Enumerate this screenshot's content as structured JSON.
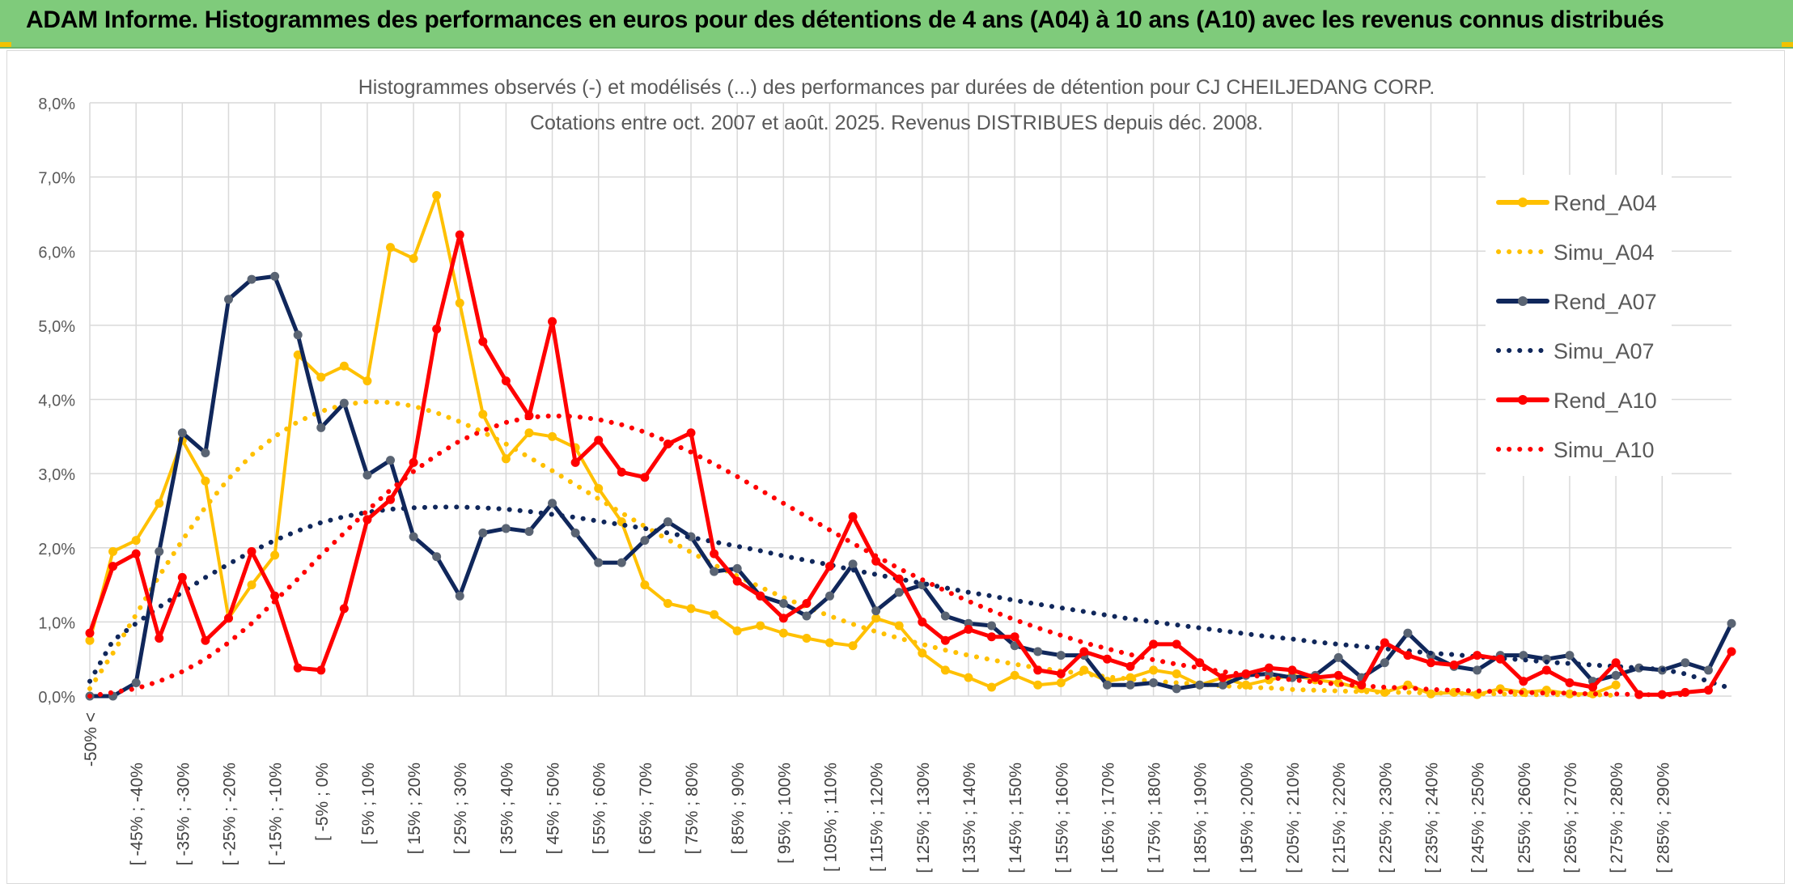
{
  "banner": {
    "title": "ADAM Informe. Histogrammes des performances en euros pour des détentions de 4 ans (A04) à 10 ans (A10) avec les revenus connus distribués"
  },
  "colors": {
    "banner_bg": "#7fcb7b",
    "A04": "#ffc000",
    "A07": "#10275b",
    "A10": "#ff0000",
    "marker_A07": "#5a6473",
    "grid": "#d9d9d9"
  },
  "chart_data": {
    "type": "line",
    "title": "Histogrammes observés (-) et modélisés (...) des performances par durées de détention pour CJ CHEILJEDANG CORP.",
    "subtitle": "Cotations entre oct. 2007 et août. 2025. Revenus DISTRIBUES depuis déc. 2008.",
    "xlabel": "",
    "ylabel": "",
    "ylim": [
      0,
      8
    ],
    "y_ticks": [
      "0,0%",
      "1,0%",
      "2,0%",
      "3,0%",
      "4,0%",
      "5,0%",
      "6,0%",
      "7,0%",
      "8,0%"
    ],
    "grid": true,
    "legend_position": "right",
    "x_labels": [
      "-50% <",
      "[ -45% ; -40%",
      "[ -35% ; -30%",
      "[ -25% ; -20%",
      "[ -15% ; -10%",
      "[ -5% ; 0%",
      "[ 5% ; 10%",
      "[ 15% ; 20%",
      "[ 25% ; 30%",
      "[ 35% ; 40%",
      "[ 45% ; 50%",
      "[ 55% ; 60%",
      "[ 65% ; 70%",
      "[ 75% ; 80%",
      "[ 85% ; 90%",
      "[ 95% ; 100%",
      "[ 105% ; 110%",
      "[ 115% ; 120%",
      "[ 125% ; 130%",
      "[ 135% ; 140%",
      "[ 145% ; 150%",
      "[ 155% ; 160%",
      "[ 165% ; 170%",
      "[ 175% ; 180%",
      "[ 185% ; 190%",
      "[ 195% ; 200%",
      "[ 205% ; 210%",
      "[ 215% ; 220%",
      "[ 225% ; 230%",
      "[ 235% ; 240%",
      "[ 245% ; 250%",
      "[ 255% ; 260%",
      "[ 265% ; 270%",
      "[ 275% ; 280%",
      "[ 285% ; 290%"
    ],
    "x_label_step": 2,
    "series": [
      {
        "name": "Rend_A04",
        "color": "#ffc000",
        "style": "solid",
        "markers": true,
        "values": [
          0.75,
          1.95,
          2.1,
          2.6,
          3.45,
          2.9,
          1.05,
          1.5,
          1.9,
          4.6,
          4.3,
          4.45,
          4.25,
          6.05,
          5.9,
          6.75,
          5.3,
          3.8,
          3.2,
          3.55,
          3.5,
          3.35,
          2.8,
          2.35,
          1.5,
          1.25,
          1.18,
          1.1,
          0.88,
          0.95,
          0.85,
          0.78,
          0.72,
          0.68,
          1.05,
          0.95,
          0.58,
          0.35,
          0.25,
          0.12,
          0.28,
          0.15,
          0.18,
          0.35,
          0.2,
          0.25,
          0.35,
          0.3,
          0.15,
          0.25,
          0.15,
          0.22,
          0.28,
          0.22,
          0.18,
          0.1,
          0.05,
          0.15,
          0.03,
          0.05,
          0.02,
          0.1,
          0.05,
          0.08,
          0.03,
          0.03,
          0.15
        ]
      },
      {
        "name": "Simu_A04",
        "color": "#ffc000",
        "style": "dotted",
        "markers": false,
        "values": [
          0.1,
          0.58,
          1.1,
          1.62,
          2.1,
          2.55,
          2.93,
          3.25,
          3.5,
          3.7,
          3.84,
          3.93,
          3.97,
          3.96,
          3.91,
          3.82,
          3.7,
          3.56,
          3.4,
          3.22,
          3.04,
          2.85,
          2.66,
          2.47,
          2.29,
          2.11,
          1.94,
          1.77,
          1.62,
          1.47,
          1.33,
          1.2,
          1.08,
          0.97,
          0.87,
          0.78,
          0.7,
          0.62,
          0.55,
          0.49,
          0.43,
          0.38,
          0.34,
          0.3,
          0.26,
          0.23,
          0.2,
          0.18,
          0.16,
          0.14,
          0.12,
          0.11,
          0.09,
          0.08,
          0.07,
          0.06,
          0.05,
          0.05,
          0.04,
          0.04,
          0.03,
          0.03,
          0.02,
          0.02,
          0.02,
          0.02,
          0.01
        ]
      },
      {
        "name": "Rend_A07",
        "color": "#10275b",
        "style": "solid",
        "markers": true,
        "values": [
          0.0,
          0.0,
          0.18,
          1.95,
          3.55,
          3.28,
          5.35,
          5.62,
          5.66,
          4.87,
          3.62,
          3.95,
          2.98,
          3.18,
          2.15,
          1.88,
          1.35,
          2.2,
          2.26,
          2.22,
          2.6,
          2.2,
          1.8,
          1.8,
          2.1,
          2.35,
          2.15,
          1.68,
          1.72,
          1.35,
          1.25,
          1.08,
          1.35,
          1.78,
          1.15,
          1.4,
          1.5,
          1.08,
          0.98,
          0.95,
          0.68,
          0.6,
          0.55,
          0.55,
          0.15,
          0.15,
          0.18,
          0.1,
          0.15,
          0.15,
          0.28,
          0.3,
          0.25,
          0.28,
          0.52,
          0.25,
          0.45,
          0.85,
          0.55,
          0.4,
          0.35,
          0.55,
          0.55,
          0.5,
          0.55,
          0.2,
          0.28,
          0.38,
          0.35,
          0.45,
          0.35,
          0.98
        ]
      },
      {
        "name": "Simu_A07",
        "color": "#10275b",
        "style": "dotted",
        "markers": false,
        "values": [
          0.2,
          0.75,
          0.98,
          1.2,
          1.4,
          1.6,
          1.78,
          1.95,
          2.1,
          2.23,
          2.34,
          2.42,
          2.48,
          2.52,
          2.54,
          2.55,
          2.55,
          2.54,
          2.52,
          2.49,
          2.45,
          2.41,
          2.36,
          2.31,
          2.26,
          2.2,
          2.14,
          2.08,
          2.02,
          1.96,
          1.89,
          1.83,
          1.77,
          1.7,
          1.64,
          1.58,
          1.52,
          1.46,
          1.4,
          1.35,
          1.29,
          1.24,
          1.19,
          1.14,
          1.09,
          1.04,
          1.0,
          0.96,
          0.92,
          0.88,
          0.84,
          0.8,
          0.77,
          0.73,
          0.7,
          0.67,
          0.64,
          0.61,
          0.58,
          0.56,
          0.53,
          0.51,
          0.49,
          0.46,
          0.44,
          0.42,
          0.4,
          0.38,
          0.36,
          0.3,
          0.2,
          0.1
        ]
      },
      {
        "name": "Rend_A10",
        "color": "#ff0000",
        "style": "solid",
        "markers": true,
        "values": [
          0.85,
          1.75,
          1.92,
          0.78,
          1.6,
          0.75,
          1.05,
          1.95,
          1.35,
          0.38,
          0.35,
          1.18,
          2.38,
          2.65,
          3.15,
          4.95,
          6.22,
          4.78,
          4.25,
          3.78,
          5.05,
          3.15,
          3.45,
          3.02,
          2.95,
          3.4,
          3.55,
          1.92,
          1.55,
          1.35,
          1.05,
          1.25,
          1.75,
          2.42,
          1.82,
          1.58,
          1.0,
          0.75,
          0.9,
          0.8,
          0.8,
          0.35,
          0.3,
          0.6,
          0.5,
          0.4,
          0.7,
          0.7,
          0.45,
          0.25,
          0.3,
          0.38,
          0.35,
          0.25,
          0.28,
          0.15,
          0.72,
          0.55,
          0.45,
          0.42,
          0.55,
          0.5,
          0.2,
          0.35,
          0.18,
          0.12,
          0.45,
          0.02,
          0.02,
          0.05,
          0.08,
          0.6
        ]
      },
      {
        "name": "Simu_A10",
        "color": "#ff0000",
        "style": "dotted",
        "markers": false,
        "values": [
          0.0,
          0.05,
          0.1,
          0.2,
          0.33,
          0.5,
          0.72,
          0.98,
          1.28,
          1.58,
          1.9,
          2.2,
          2.5,
          2.78,
          3.03,
          3.25,
          3.44,
          3.58,
          3.69,
          3.76,
          3.78,
          3.77,
          3.73,
          3.66,
          3.56,
          3.43,
          3.29,
          3.13,
          2.96,
          2.78,
          2.6,
          2.42,
          2.24,
          2.06,
          1.89,
          1.72,
          1.57,
          1.42,
          1.28,
          1.15,
          1.03,
          0.92,
          0.82,
          0.72,
          0.64,
          0.56,
          0.49,
          0.43,
          0.38,
          0.33,
          0.29,
          0.25,
          0.22,
          0.19,
          0.16,
          0.14,
          0.12,
          0.11,
          0.09,
          0.08,
          0.07,
          0.06,
          0.05,
          0.04,
          0.04,
          0.03,
          0.03,
          0.02,
          0.02,
          0.02
        ]
      }
    ]
  }
}
